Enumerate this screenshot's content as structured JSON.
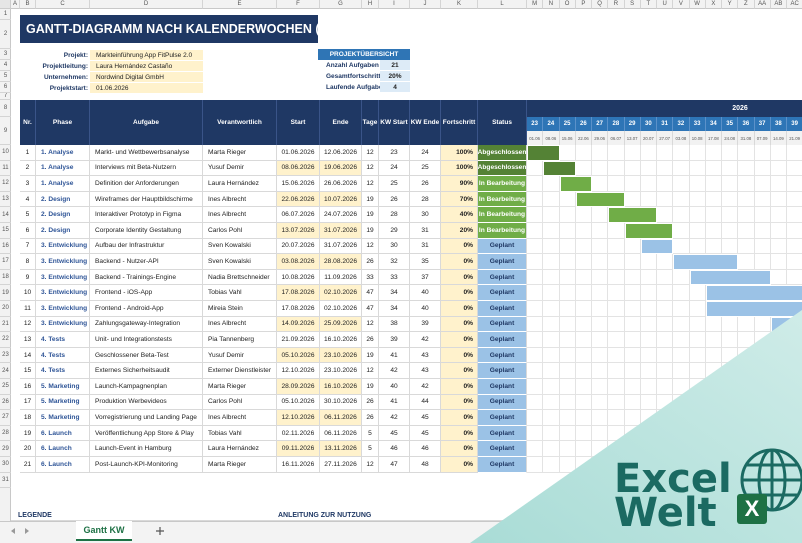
{
  "column_letters": [
    "A",
    "B",
    "C",
    "D",
    "E",
    "F",
    "G",
    "H",
    "I",
    "J",
    "K",
    "L",
    "M",
    "N",
    "O",
    "P",
    "Q",
    "R",
    "S",
    "T",
    "U",
    "V",
    "W",
    "X",
    "Y",
    "Z",
    "AA",
    "AB",
    "AC"
  ],
  "row_numbers": [
    1,
    2,
    3,
    4,
    5,
    6,
    7,
    8,
    9,
    10,
    11,
    12,
    13,
    14,
    15,
    16,
    17,
    18,
    19,
    20,
    21,
    22,
    23,
    24,
    25,
    26,
    27,
    28,
    29,
    30,
    31
  ],
  "header": {
    "title": "GANTT-DIAGRAMM NACH KALENDERWOCHEN (KW)"
  },
  "project_info": [
    {
      "label": "Projekt:",
      "value": "Markteinführung App FitPulse 2.0"
    },
    {
      "label": "Projektleitung:",
      "value": "Laura Hernández Castaño"
    },
    {
      "label": "Unternehmen:",
      "value": "Nordwind Digital GmbH"
    },
    {
      "label": "Projektstart:",
      "value": "01.06.2026"
    }
  ],
  "overview": {
    "title": "PROJEKTÜBERSICHT",
    "items": [
      {
        "label": "Anzahl Aufgaben",
        "value": "21"
      },
      {
        "label": "Gesamtfortschritt",
        "value": "20%"
      },
      {
        "label": "Laufende Aufgaben",
        "value": "4"
      }
    ]
  },
  "table": {
    "columns": [
      "Nr.",
      "Phase",
      "Aufgabe",
      "Verantwortlich",
      "Start",
      "Ende",
      "Tage",
      "KW Start",
      "KW Ende",
      "Fortschritt",
      "Status"
    ],
    "rows": [
      [
        1,
        "1. Analyse",
        "Markt- und Wettbewerbsanalyse",
        "Marta Rieger",
        "01.06.2026",
        "12.06.2026",
        12,
        23,
        24,
        "100%",
        "Abgeschlossen"
      ],
      [
        2,
        "1. Analyse",
        "Interviews mit Beta-Nutzern",
        "Yusuf Demir",
        "08.06.2026",
        "19.06.2026",
        12,
        24,
        25,
        "100%",
        "Abgeschlossen"
      ],
      [
        3,
        "1. Analyse",
        "Definition der Anforderungen",
        "Laura Hernández",
        "15.06.2026",
        "26.06.2026",
        12,
        25,
        26,
        "90%",
        "In Bearbeitung"
      ],
      [
        4,
        "2. Design",
        "Wireframes der Hauptbildschirme",
        "Ines Albrecht",
        "22.06.2026",
        "10.07.2026",
        19,
        26,
        28,
        "70%",
        "In Bearbeitung"
      ],
      [
        5,
        "2. Design",
        "Interaktiver Prototyp in Figma",
        "Ines Albrecht",
        "06.07.2026",
        "24.07.2026",
        19,
        28,
        30,
        "40%",
        "In Bearbeitung"
      ],
      [
        6,
        "2. Design",
        "Corporate Identity Gestaltung",
        "Carlos Pohl",
        "13.07.2026",
        "31.07.2026",
        19,
        29,
        31,
        "20%",
        "In Bearbeitung"
      ],
      [
        7,
        "3. Entwicklung",
        "Aufbau der Infrastruktur",
        "Sven Kowalski",
        "20.07.2026",
        "31.07.2026",
        12,
        30,
        31,
        "0%",
        "Geplant"
      ],
      [
        8,
        "3. Entwicklung",
        "Backend - Nutzer-API",
        "Sven Kowalski",
        "03.08.2026",
        "28.08.2026",
        26,
        32,
        35,
        "0%",
        "Geplant"
      ],
      [
        9,
        "3. Entwicklung",
        "Backend - Trainings-Engine",
        "Nadia Brettschneider",
        "10.08.2026",
        "11.09.2026",
        33,
        33,
        37,
        "0%",
        "Geplant"
      ],
      [
        10,
        "3. Entwicklung",
        "Frontend - iOS-App",
        "Tobias Vahl",
        "17.08.2026",
        "02.10.2026",
        47,
        34,
        40,
        "0%",
        "Geplant"
      ],
      [
        11,
        "3. Entwicklung",
        "Frontend - Android-App",
        "Mireia Stein",
        "17.08.2026",
        "02.10.2026",
        47,
        34,
        40,
        "0%",
        "Geplant"
      ],
      [
        12,
        "3. Entwicklung",
        "Zahlungsgateway-Integration",
        "Ines Albrecht",
        "14.09.2026",
        "25.09.2026",
        12,
        38,
        39,
        "0%",
        "Geplant"
      ],
      [
        13,
        "4. Tests",
        "Unit- und Integrationstests",
        "Pia Tannenberg",
        "21.09.2026",
        "16.10.2026",
        26,
        39,
        42,
        "0%",
        "Geplant"
      ],
      [
        14,
        "4. Tests",
        "Geschlossener Beta-Test",
        "Yusuf Demir",
        "05.10.2026",
        "23.10.2026",
        19,
        41,
        43,
        "0%",
        "Geplant"
      ],
      [
        15,
        "4. Tests",
        "Externes Sicherheitsaudit",
        "Externer Dienstleister",
        "12.10.2026",
        "23.10.2026",
        12,
        42,
        43,
        "0%",
        "Geplant"
      ],
      [
        16,
        "5. Marketing",
        "Launch-Kampagnenplan",
        "Marta Rieger",
        "28.09.2026",
        "16.10.2026",
        19,
        40,
        42,
        "0%",
        "Geplant"
      ],
      [
        17,
        "5. Marketing",
        "Produktion Werbevideos",
        "Carlos Pohl",
        "05.10.2026",
        "30.10.2026",
        26,
        41,
        44,
        "0%",
        "Geplant"
      ],
      [
        18,
        "5. Marketing",
        "Vorregistrierung und Landing Page",
        "Ines Albrecht",
        "12.10.2026",
        "06.11.2026",
        26,
        42,
        45,
        "0%",
        "Geplant"
      ],
      [
        19,
        "6. Launch",
        "Veröffentlichung App Store & Play",
        "Tobias Vahl",
        "02.11.2026",
        "06.11.2026",
        5,
        45,
        45,
        "0%",
        "Geplant"
      ],
      [
        20,
        "6. Launch",
        "Launch-Event in Hamburg",
        "Laura Hernández",
        "09.11.2026",
        "13.11.2026",
        5,
        46,
        46,
        "0%",
        "Geplant"
      ],
      [
        21,
        "6. Launch",
        "Post-Launch-KPI-Monitoring",
        "Marta Rieger",
        "16.11.2026",
        "27.11.2026",
        12,
        47,
        48,
        "0%",
        "Geplant"
      ]
    ],
    "status_styles": {
      "Abgeschlossen": {
        "fill": "#548235",
        "text": "#ffffff"
      },
      "In Bearbeitung": {
        "fill": "#70ad47",
        "text": "#ffffff"
      },
      "Geplant": {
        "fill": "#9bc2e6",
        "text": "#1f3864"
      }
    }
  },
  "gantt": {
    "year": "2026",
    "weeks": [
      23,
      24,
      25,
      26,
      27,
      28,
      29,
      30,
      31,
      32,
      33,
      34,
      35,
      36,
      37,
      38,
      39
    ],
    "dates": [
      "01.06",
      "08.06",
      "15.06",
      "22.06",
      "29.06",
      "06.07",
      "13.07",
      "20.07",
      "27.07",
      "03.08",
      "10.08",
      "17.08",
      "24.08",
      "31.08",
      "07.09",
      "14.09",
      "21.09"
    ]
  },
  "footer": {
    "legend": "LEGENDE",
    "instructions": "ANLEITUNG ZUR NUTZUNG",
    "sheet_tab": "Gantt KW"
  },
  "logo": {
    "line1": "Excel",
    "line2": "Welt",
    "icon": "X"
  }
}
